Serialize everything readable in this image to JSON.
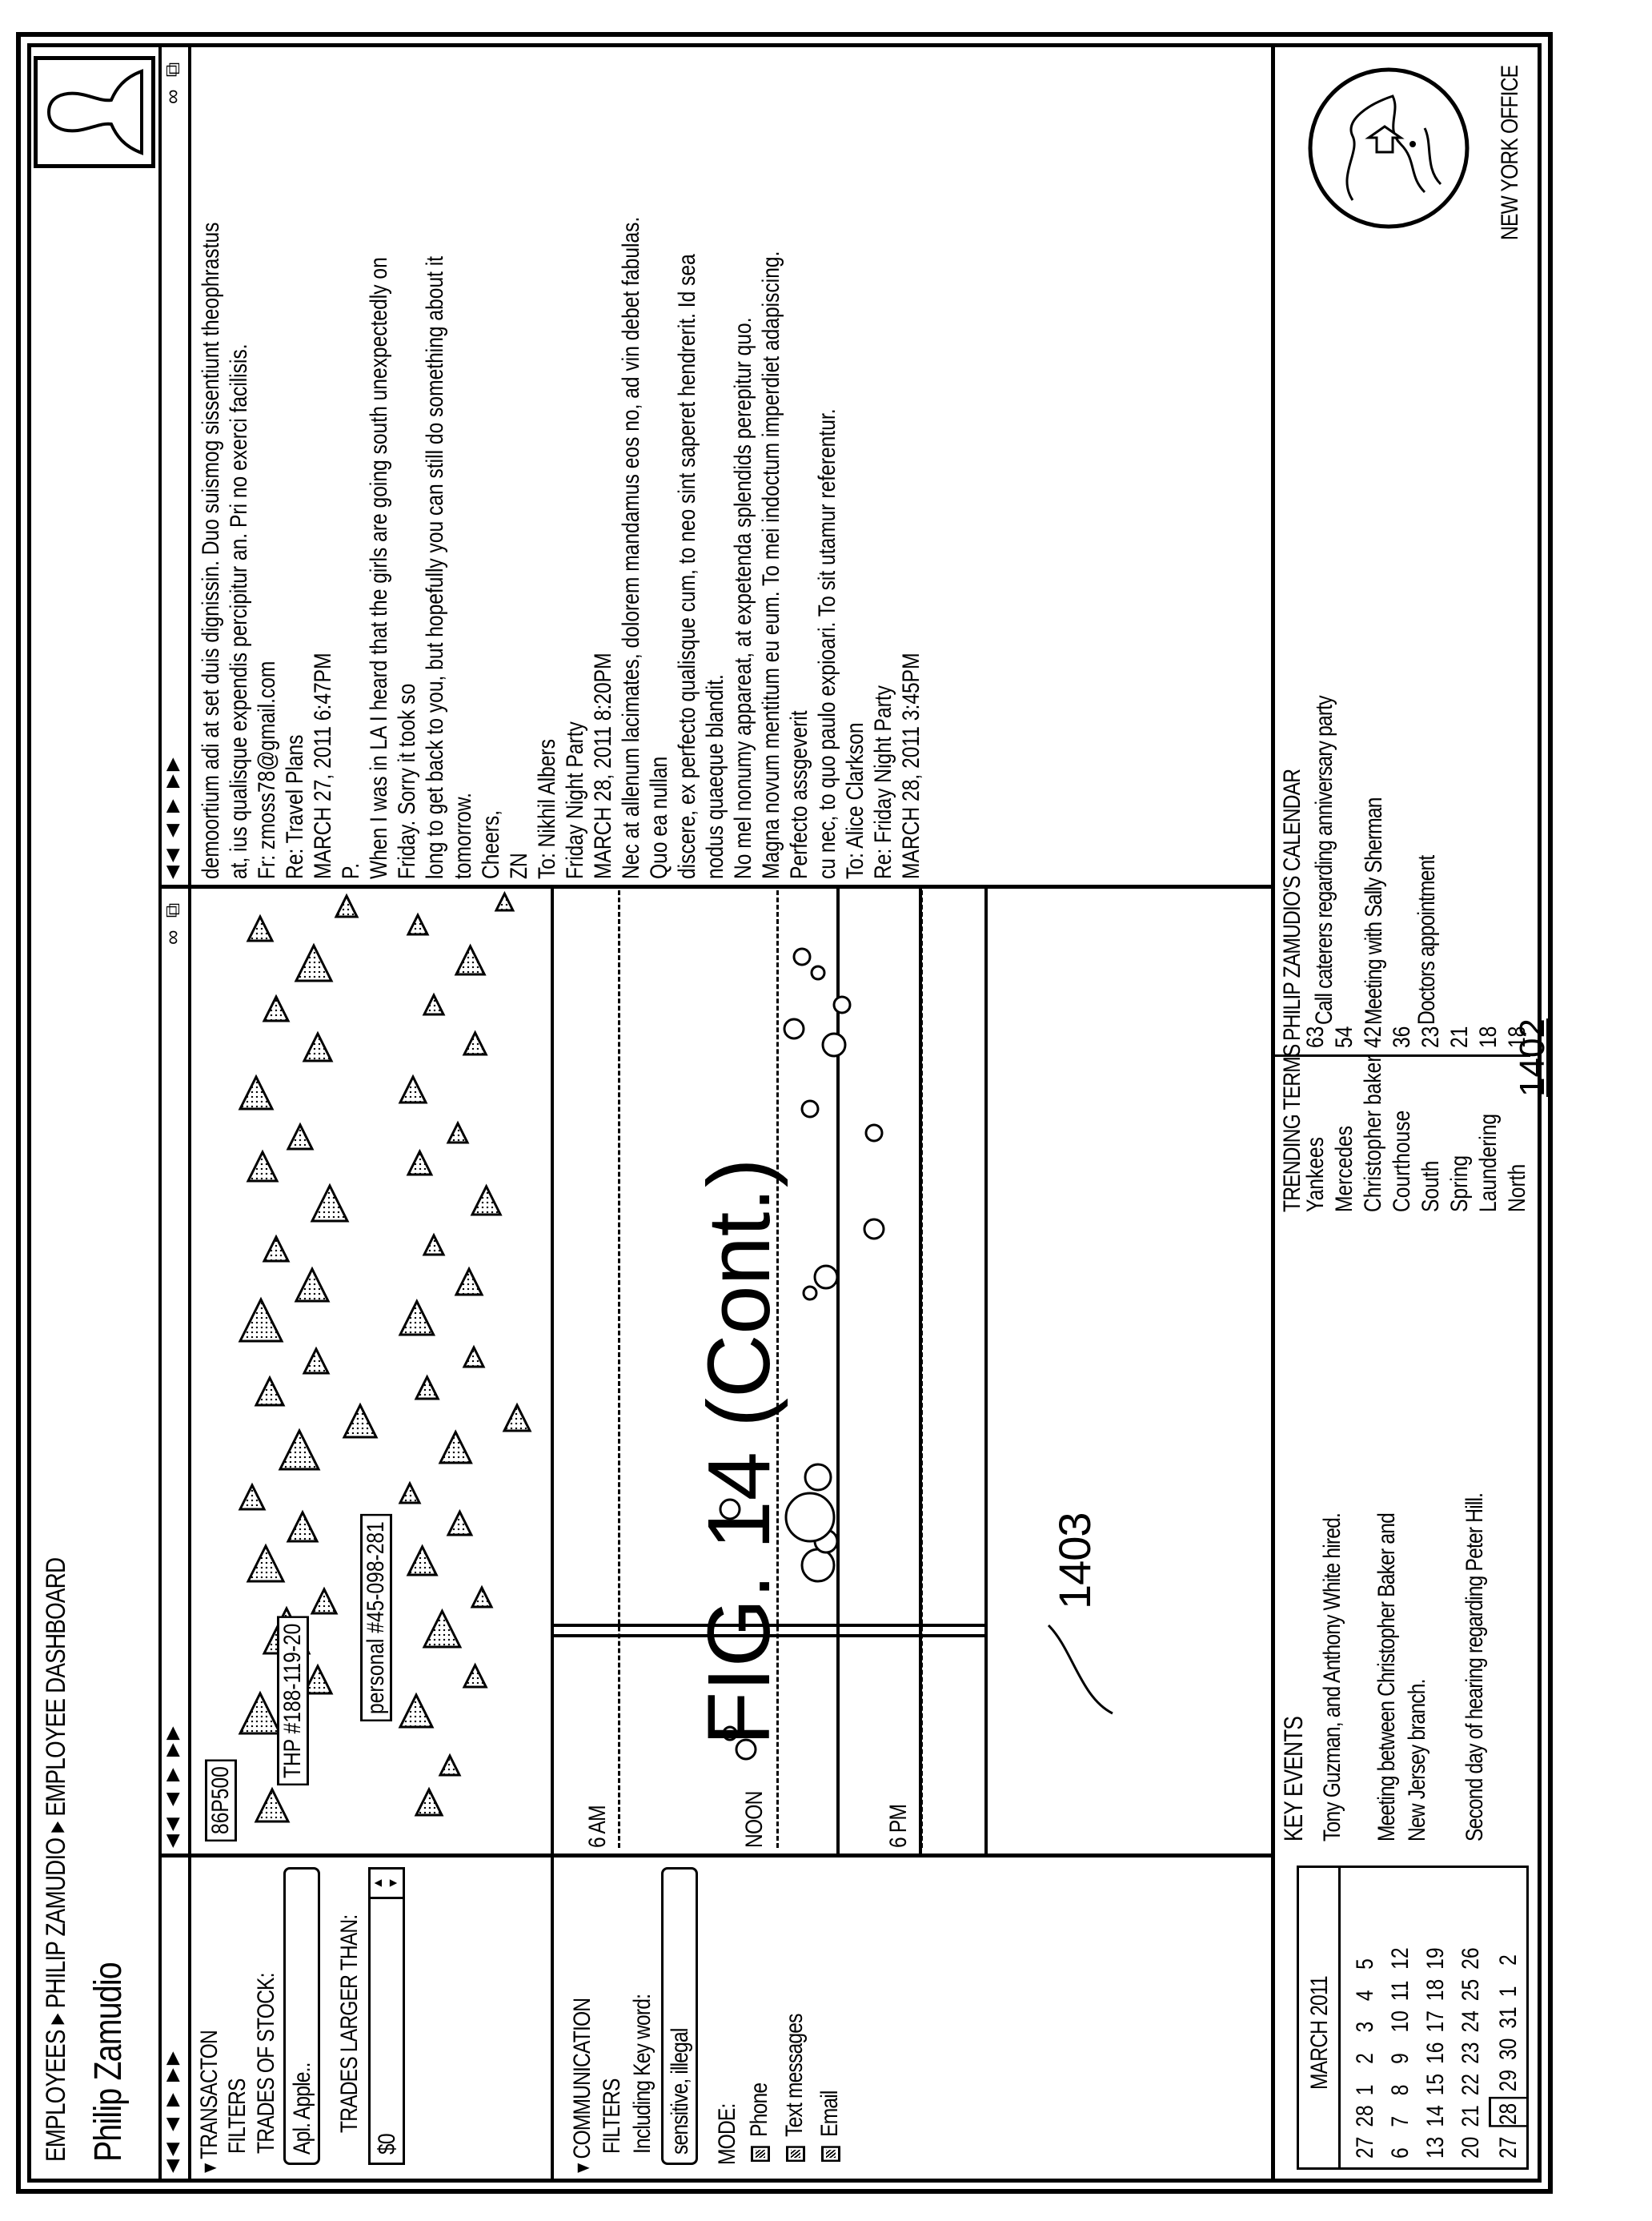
{
  "breadcrumb": {
    "items": [
      "EMPLOYEES",
      "PHILIP ZAMUDIO",
      "EMPLOYEE DASHBOARD"
    ]
  },
  "employee_name": "Philip Zamudio",
  "filters": {
    "transaction_heading": "TRANSACTON",
    "filters_label": "FILTERS",
    "trades_of_stock_label": "TRADES OF STOCK:",
    "trades_of_stock_value": "Apl. Apple..",
    "trades_larger_label": "TRADES LARGER THAN:",
    "trades_larger_value": "$0",
    "communication_heading": "COMMUNICATION",
    "comm_filters_label": "FILTERS",
    "keyword_label": "Including Key word:",
    "keyword_value": "sensitive, illegal",
    "mode_label": "MODE:",
    "modes": [
      "Phone",
      "Text messages",
      "Email"
    ]
  },
  "transaction_chart": {
    "labels": [
      "86P500",
      "THP #188-119-20",
      "personal #45-098-281"
    ]
  },
  "communication_chart": {
    "time_labels": [
      "6 AM",
      "NOON",
      "6 PM"
    ],
    "callout": "1403"
  },
  "messages": [
    {
      "lines": [
        "demoortium adi at set duis dignissin. Duo suismog sissentiunt theophrastus",
        "at, ius qualisque expendis percipitur an. Pri no exerci facilisis."
      ]
    },
    {
      "lines": [
        "Fr: zmoss78@gmail.com",
        "Re: Travel Plans",
        "MARCH 27, 2011 6:47PM",
        "P.",
        "When I was in LA I heard that the girls are going south unexpectedly on Friday. Sorry it took so",
        "long to get back to you, but hopefully you can still do something about it tomorrow.",
        "Cheers,",
        "ZN"
      ]
    },
    {
      "lines": [
        "To: Nikhil Albers",
        "Friday Night Party",
        "MARCH 28, 2011 8:20PM",
        "Nec at allenum lacimates, dolorem mandamus eos no, ad vin debet fabulas. Quo ea nullan",
        "discere, ex perfecto qualisque cum, to neo sint saperet hendrerit. Id sea nodus quaeque blandit.",
        "No mel nonumy appareat, at expetenda splendids perepitur quo.",
        "Magna novum mentitum eu eum. To mei indoctum imperdiet adapiscing. Perfecto assgeverit",
        "cu nec, to quo paulo expioari. To sit utamur referentur."
      ]
    },
    {
      "lines": [
        "To: Alice Clarkson",
        "Re: Friday Night Party",
        "MARCH 28, 2011 3:45PM"
      ]
    }
  ],
  "calendar": {
    "title": "MARCH 2011",
    "weeks": [
      [
        "27",
        "28",
        "1",
        "2",
        "3",
        "4",
        "5"
      ],
      [
        "6",
        "7",
        "8",
        "9",
        "10",
        "11",
        "12"
      ],
      [
        "13",
        "14",
        "15",
        "16",
        "17",
        "18",
        "19"
      ],
      [
        "20",
        "21",
        "22",
        "23",
        "24",
        "25",
        "26"
      ],
      [
        "27",
        "28",
        "29",
        "30",
        "31",
        "1",
        "2"
      ]
    ]
  },
  "key_events": {
    "title": "KEY EVENTS",
    "items": [
      "Tony Guzman, and Anthony White hired.",
      "Meeting between Christopher Baker and",
      "New Jersey branch.",
      "Second day of hearing regarding Peter Hill."
    ]
  },
  "trending": {
    "title": "TRENDING TERMS",
    "terms": [
      {
        "term": "Yankees",
        "count": "63"
      },
      {
        "term": "Mercedes",
        "count": "54"
      },
      {
        "term": "Christopher baker",
        "count": "42"
      },
      {
        "term": "Courthouse",
        "count": "36"
      },
      {
        "term": "South",
        "count": "23"
      },
      {
        "term": "Spring",
        "count": "21"
      },
      {
        "term": "Laundering",
        "count": "18"
      },
      {
        "term": "North",
        "count": "18"
      }
    ]
  },
  "personal_calendar": {
    "title": "PHILIP ZAMUDIO'S CALENDAR",
    "items": [
      "Call caterers regarding anniversary party",
      "Meeting with Sally Sherman",
      "Doctors appointment"
    ]
  },
  "office": {
    "label": "NEW YORK OFFICE"
  },
  "figure": {
    "caption": "FIG. 14 (Cont.)",
    "ref": "1402"
  }
}
